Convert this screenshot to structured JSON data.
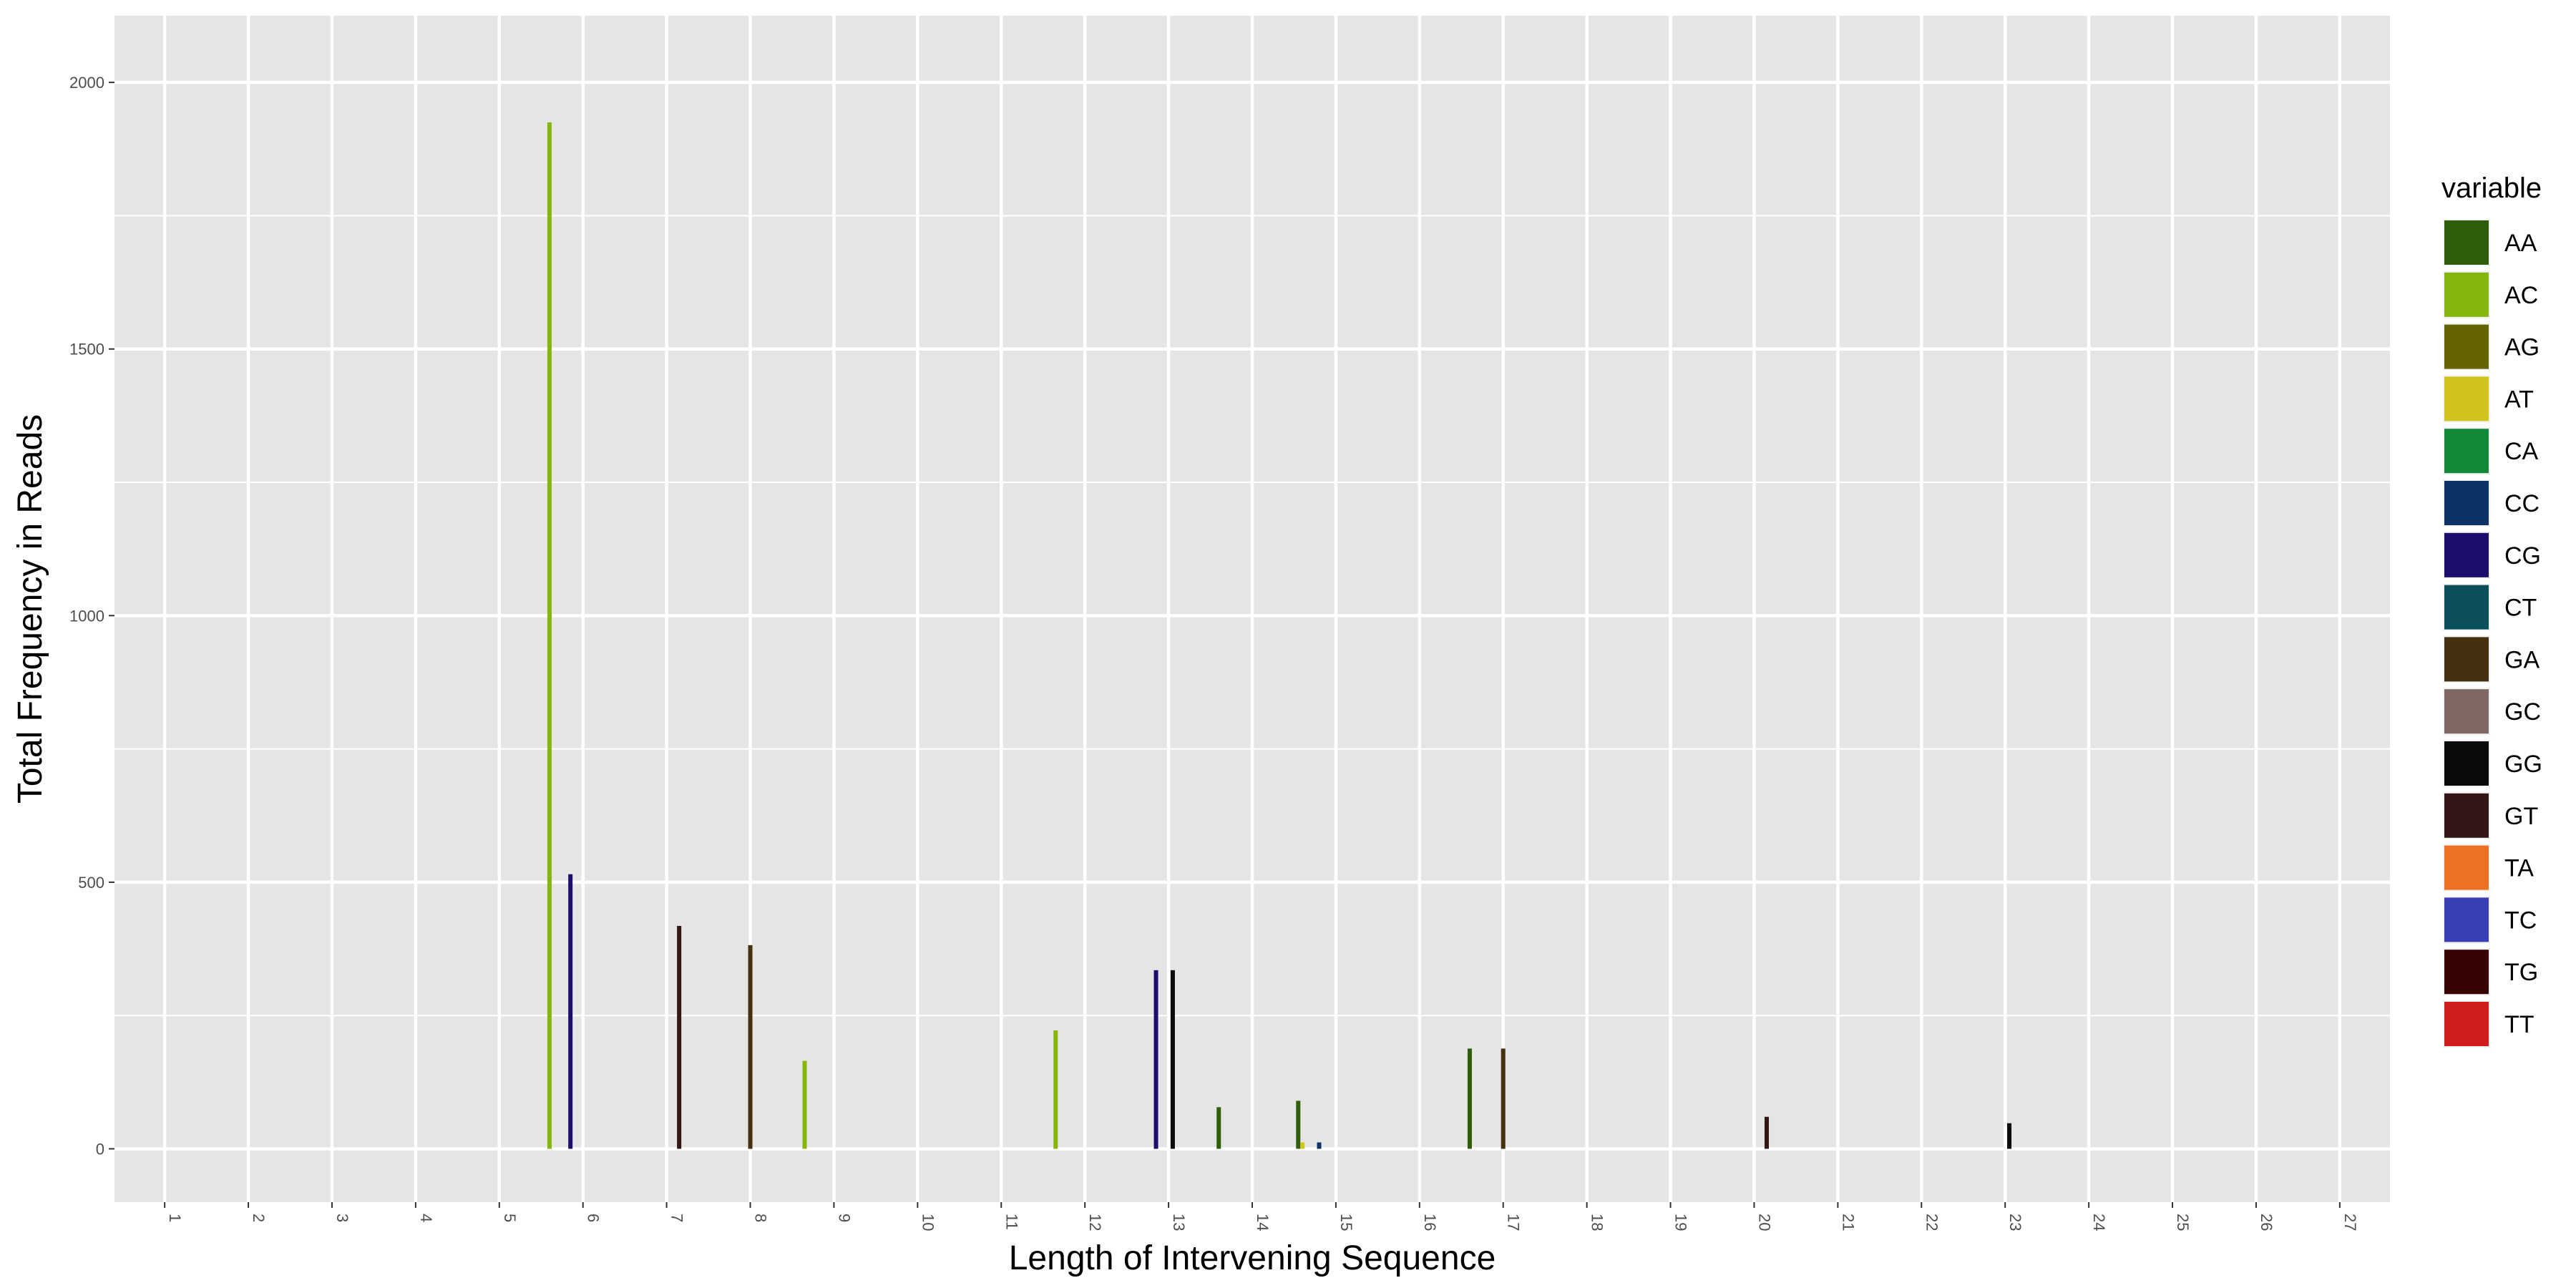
{
  "chart_data": {
    "type": "bar",
    "xlabel": "Length of Intervening Sequence",
    "ylabel": "Total Frequency in Reads",
    "x_categories": [
      "1",
      "2",
      "3",
      "4",
      "5",
      "6",
      "7",
      "8",
      "9",
      "10",
      "11",
      "12",
      "13",
      "14",
      "15",
      "16",
      "17",
      "18",
      "19",
      "20",
      "21",
      "22",
      "23",
      "24",
      "25",
      "26",
      "27"
    ],
    "ylim": [
      -100,
      2125
    ],
    "y_ticks": [
      0,
      500,
      1000,
      1500,
      2000
    ],
    "grid": true,
    "background": "#e5e5e5",
    "legend": {
      "title": "variable",
      "placement": "right",
      "items": [
        {
          "label": "AA",
          "color": "#2e5e0a"
        },
        {
          "label": "AC",
          "color": "#86b50c"
        },
        {
          "label": "AG",
          "color": "#646405"
        },
        {
          "label": "AT",
          "color": "#d2c31c"
        },
        {
          "label": "CA",
          "color": "#138a37"
        },
        {
          "label": "CC",
          "color": "#0d3366"
        },
        {
          "label": "CG",
          "color": "#1c0f6b"
        },
        {
          "label": "CT",
          "color": "#0b4f5a"
        },
        {
          "label": "GA",
          "color": "#45300f"
        },
        {
          "label": "GC",
          "color": "#7e6861"
        },
        {
          "label": "GG",
          "color": "#0b0b0b"
        },
        {
          "label": "GT",
          "color": "#331616"
        },
        {
          "label": "TA",
          "color": "#ee7022"
        },
        {
          "label": "TC",
          "color": "#3a3fb5"
        },
        {
          "label": "TG",
          "color": "#380303"
        },
        {
          "label": "TT",
          "color": "#d11d1d"
        }
      ]
    },
    "bars": [
      {
        "x": 6,
        "series": "AC",
        "offset": -0.4,
        "value": 1925
      },
      {
        "x": 6,
        "series": "CG",
        "offset": -0.15,
        "value": 515
      },
      {
        "x": 7,
        "series": "GT",
        "offset": 0.15,
        "value": 418
      },
      {
        "x": 8,
        "series": "GA",
        "offset": 0.0,
        "value": 382
      },
      {
        "x": 9,
        "series": "AC",
        "offset": -0.35,
        "value": 165
      },
      {
        "x": 12,
        "series": "AC",
        "offset": -0.35,
        "value": 222
      },
      {
        "x": 13,
        "series": "CG",
        "offset": -0.15,
        "value": 335
      },
      {
        "x": 13,
        "series": "GG",
        "offset": 0.05,
        "value": 335
      },
      {
        "x": 14,
        "series": "AA",
        "offset": -0.4,
        "value": 78
      },
      {
        "x": 15,
        "series": "AA",
        "offset": -0.45,
        "value": 90
      },
      {
        "x": 15,
        "series": "AT",
        "offset": -0.4,
        "value": 12
      },
      {
        "x": 15,
        "series": "CC",
        "offset": -0.2,
        "value": 12
      },
      {
        "x": 17,
        "series": "AA",
        "offset": -0.4,
        "value": 188
      },
      {
        "x": 17,
        "series": "GA",
        "offset": 0.0,
        "value": 188
      },
      {
        "x": 20,
        "series": "GT",
        "offset": 0.15,
        "value": 60
      },
      {
        "x": 23,
        "series": "GG",
        "offset": 0.05,
        "value": 48
      }
    ]
  }
}
